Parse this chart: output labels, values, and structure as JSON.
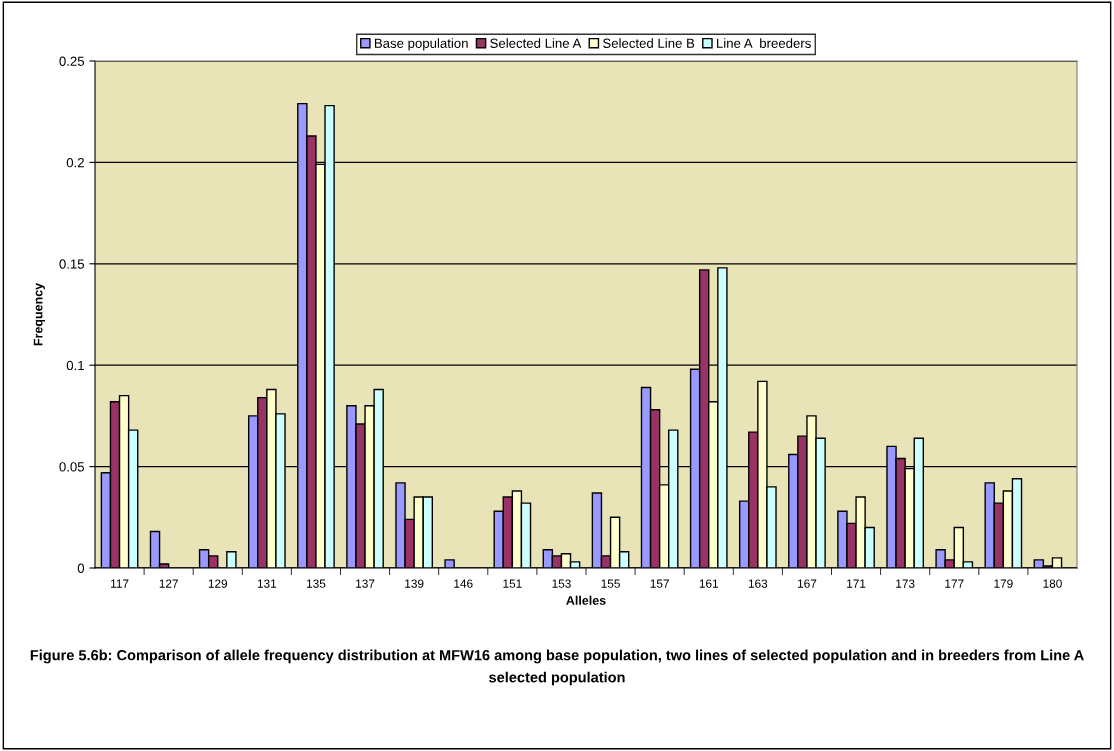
{
  "chart_data": {
    "type": "bar",
    "xlabel": "Alleles",
    "ylabel": "Frequency",
    "categories": [
      "117",
      "127",
      "129",
      "131",
      "135",
      "137",
      "139",
      "146",
      "151",
      "153",
      "155",
      "157",
      "161",
      "163",
      "167",
      "171",
      "173",
      "177",
      "179",
      "180"
    ],
    "series": [
      {
        "name": "Base population",
        "color": "#9999ff",
        "values": [
          0.047,
          0.018,
          0.009,
          0.075,
          0.229,
          0.08,
          0.042,
          0.004,
          0.028,
          0.009,
          0.037,
          0.089,
          0.098,
          0.033,
          0.056,
          0.028,
          0.06,
          0.009,
          0.042,
          0.004
        ]
      },
      {
        "name": "Selected Line A",
        "color": "#993366",
        "values": [
          0.082,
          0.002,
          0.006,
          0.084,
          0.213,
          0.071,
          0.024,
          0,
          0.035,
          0.006,
          0.006,
          0.078,
          0.147,
          0.067,
          0.065,
          0.022,
          0.054,
          0.004,
          0.032,
          0.001
        ]
      },
      {
        "name": "Selected Line B",
        "color": "#ffffcc",
        "values": [
          0.085,
          0,
          0,
          0.088,
          0.199,
          0.08,
          0.035,
          0,
          0.038,
          0.007,
          0.025,
          0.041,
          0.082,
          0.092,
          0.075,
          0.035,
          0.049,
          0.02,
          0.038,
          0.005
        ]
      },
      {
        "name": "Line A  breeders",
        "color": "#ccffff",
        "values": [
          0.068,
          0,
          0.008,
          0.076,
          0.228,
          0.088,
          0.035,
          0,
          0.032,
          0.003,
          0.008,
          0.068,
          0.148,
          0.04,
          0.064,
          0.02,
          0.064,
          0.003,
          0.044,
          0
        ]
      }
    ],
    "ylim": [
      0,
      0.25
    ],
    "yticks": [
      0,
      0.05,
      0.1,
      0.15,
      0.2,
      0.25
    ],
    "grid": "y",
    "legend": "top",
    "annotations": [
      "Figure 5.6b: Comparison of allele frequency distribution at MFW16 among base population, two lines of selected population and in breeders from Line A selected population"
    ]
  }
}
